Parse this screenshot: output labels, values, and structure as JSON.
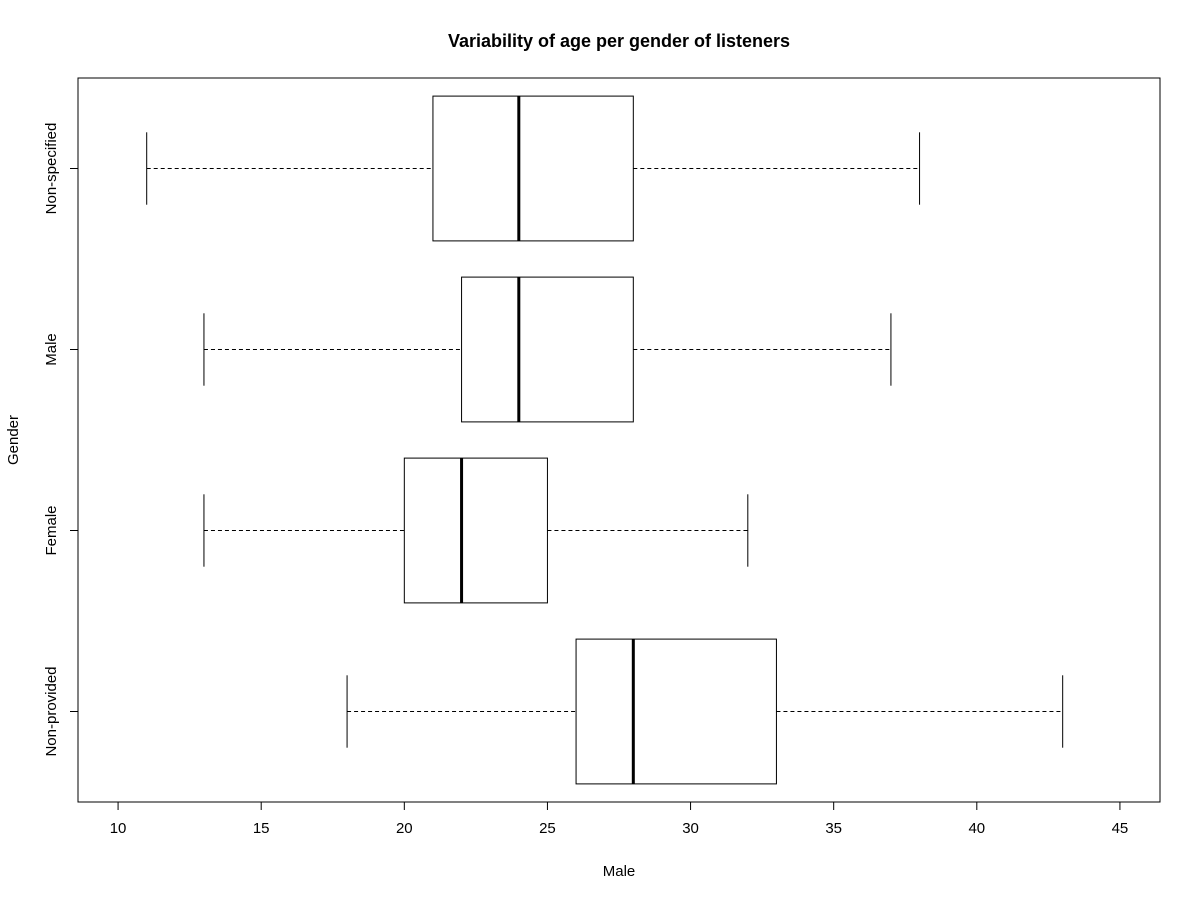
{
  "chart_data": {
    "type": "boxplot",
    "orientation": "horizontal",
    "title": "Variability of age per gender of listeners",
    "xlabel": "Male",
    "ylabel": "Gender",
    "xlim": [
      8.6,
      46.4
    ],
    "x_ticks": [
      10,
      15,
      20,
      25,
      30,
      35,
      40,
      45
    ],
    "grid": false,
    "legend": "none",
    "categories": [
      "Non-provided",
      "Female",
      "Male",
      "Non-specified"
    ],
    "boxes": [
      {
        "name": "Non-provided",
        "whisker_low": 18,
        "q1": 26,
        "median": 28,
        "q3": 33,
        "whisker_high": 43
      },
      {
        "name": "Female",
        "whisker_low": 13,
        "q1": 20,
        "median": 22,
        "q3": 25,
        "whisker_high": 32
      },
      {
        "name": "Male",
        "whisker_low": 13,
        "q1": 22,
        "median": 24,
        "q3": 28,
        "whisker_high": 37
      },
      {
        "name": "Non-specified",
        "whisker_low": 11,
        "q1": 21,
        "median": 24,
        "q3": 28,
        "whisker_high": 38
      }
    ],
    "colors": {
      "box_fill": "#ffffff",
      "stroke": "#000000",
      "whisker": "#000000"
    }
  }
}
